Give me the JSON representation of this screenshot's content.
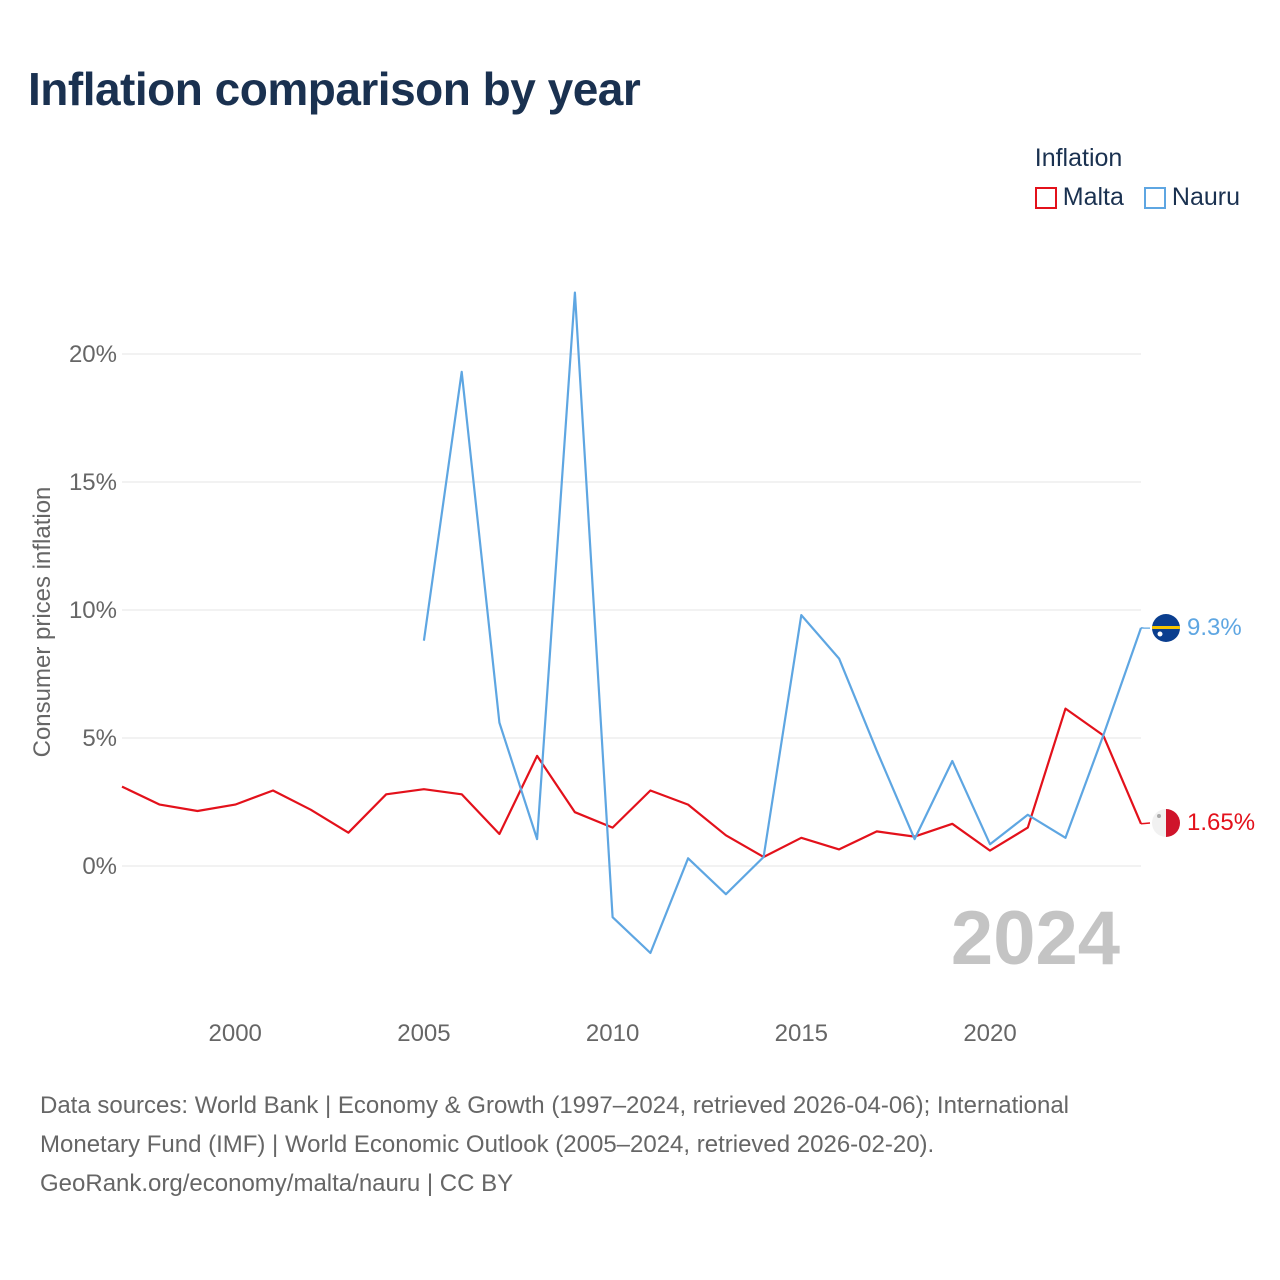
{
  "title": "Inflation comparison by year",
  "legend": {
    "title": "Inflation",
    "items": [
      {
        "label": "Malta",
        "color": "#e3111b"
      },
      {
        "label": "Nauru",
        "color": "#5ea6e2"
      }
    ]
  },
  "year_watermark": "2024",
  "sources": {
    "line1": "Data sources: World Bank | Economy & Growth (1997–2024, retrieved 2026-04-06); International",
    "line2": "Monetary Fund (IMF) | World Economic Outlook (2005–2024, retrieved 2026-02-20).",
    "line3": "GeoRank.org/economy/malta/nauru | CC BY"
  },
  "chart_data": {
    "type": "line",
    "title": "Inflation comparison by year",
    "xlabel": "",
    "ylabel": "Consumer prices inflation",
    "xlim": [
      1997,
      2024
    ],
    "ylim": [
      -5,
      23
    ],
    "x_ticks": [
      2000,
      2005,
      2010,
      2015,
      2020
    ],
    "y_ticks": [
      0,
      5,
      10,
      15,
      20
    ],
    "y_tick_labels": [
      "0%",
      "5%",
      "10%",
      "15%",
      "20%"
    ],
    "grid": true,
    "legend_position": "top-right",
    "series": [
      {
        "name": "Malta",
        "color": "#e3111b",
        "end_label": "1.65%",
        "end_value": 1.65,
        "x": [
          1997,
          1998,
          1999,
          2000,
          2001,
          2002,
          2003,
          2004,
          2005,
          2006,
          2007,
          2008,
          2009,
          2010,
          2011,
          2012,
          2013,
          2014,
          2015,
          2016,
          2017,
          2018,
          2019,
          2020,
          2021,
          2022,
          2023,
          2024
        ],
        "values": [
          3.1,
          2.4,
          2.15,
          2.4,
          2.95,
          2.2,
          1.3,
          2.8,
          3.0,
          2.8,
          1.25,
          4.3,
          2.1,
          1.5,
          2.95,
          2.4,
          1.2,
          0.35,
          1.1,
          0.65,
          1.35,
          1.15,
          1.65,
          0.6,
          1.5,
          6.15,
          5.1,
          1.65
        ]
      },
      {
        "name": "Nauru",
        "color": "#5ea6e2",
        "end_label": "9.3%",
        "end_value": 9.3,
        "x": [
          2005,
          2006,
          2007,
          2008,
          2009,
          2010,
          2011,
          2012,
          2013,
          2014,
          2015,
          2016,
          2017,
          2018,
          2019,
          2020,
          2021,
          2022,
          2023,
          2024
        ],
        "values": [
          8.8,
          19.3,
          5.6,
          1.05,
          22.4,
          -2.0,
          -3.4,
          0.3,
          -1.1,
          0.35,
          9.8,
          8.1,
          4.5,
          1.05,
          4.1,
          0.85,
          2.0,
          1.1,
          5.1,
          9.3
        ]
      }
    ]
  }
}
